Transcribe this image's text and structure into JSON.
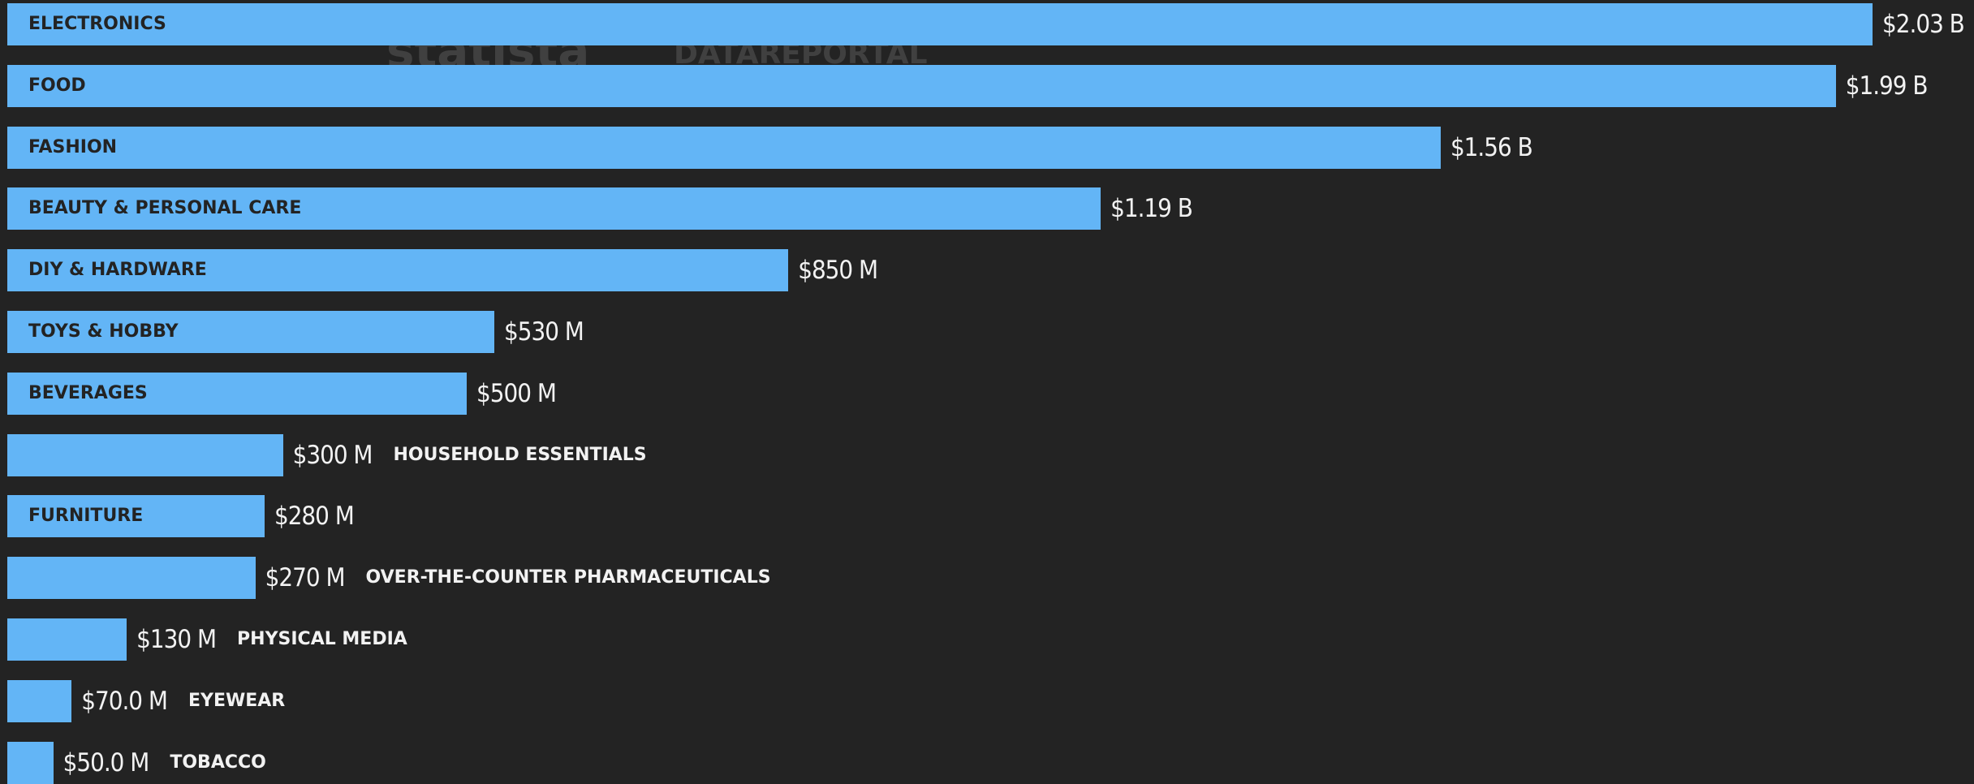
{
  "chart_data": {
    "type": "bar",
    "orientation": "horizontal",
    "categories": [
      "ELECTRONICS",
      "FOOD",
      "FASHION",
      "BEAUTY & PERSONAL CARE",
      "DIY & HARDWARE",
      "TOYS & HOBBY",
      "BEVERAGES",
      "HOUSEHOLD ESSENTIALS",
      "FURNITURE",
      "OVER-THE-COUNTER PHARMACEUTICALS",
      "PHYSICAL MEDIA",
      "EYEWEAR",
      "TOBACCO"
    ],
    "values": [
      2030,
      1990,
      1560,
      1190,
      850,
      530,
      500,
      300,
      280,
      270,
      130,
      70,
      50
    ],
    "unit": "USD millions",
    "value_labels": [
      "$2.03 B",
      "$1.99 B",
      "$1.56 B",
      "$1.19 B",
      "$850 M",
      "$530 M",
      "$500 M",
      "$300 M",
      "$280 M",
      "$270 M",
      "$130 M",
      "$70.0 M",
      "$50.0 M"
    ],
    "xlim": [
      0,
      2030
    ],
    "bar_color": "#63b5f6",
    "background_color": "#232323"
  },
  "watermarks": {
    "statista": "statista",
    "datareportal": "DATAREPORTAL"
  }
}
